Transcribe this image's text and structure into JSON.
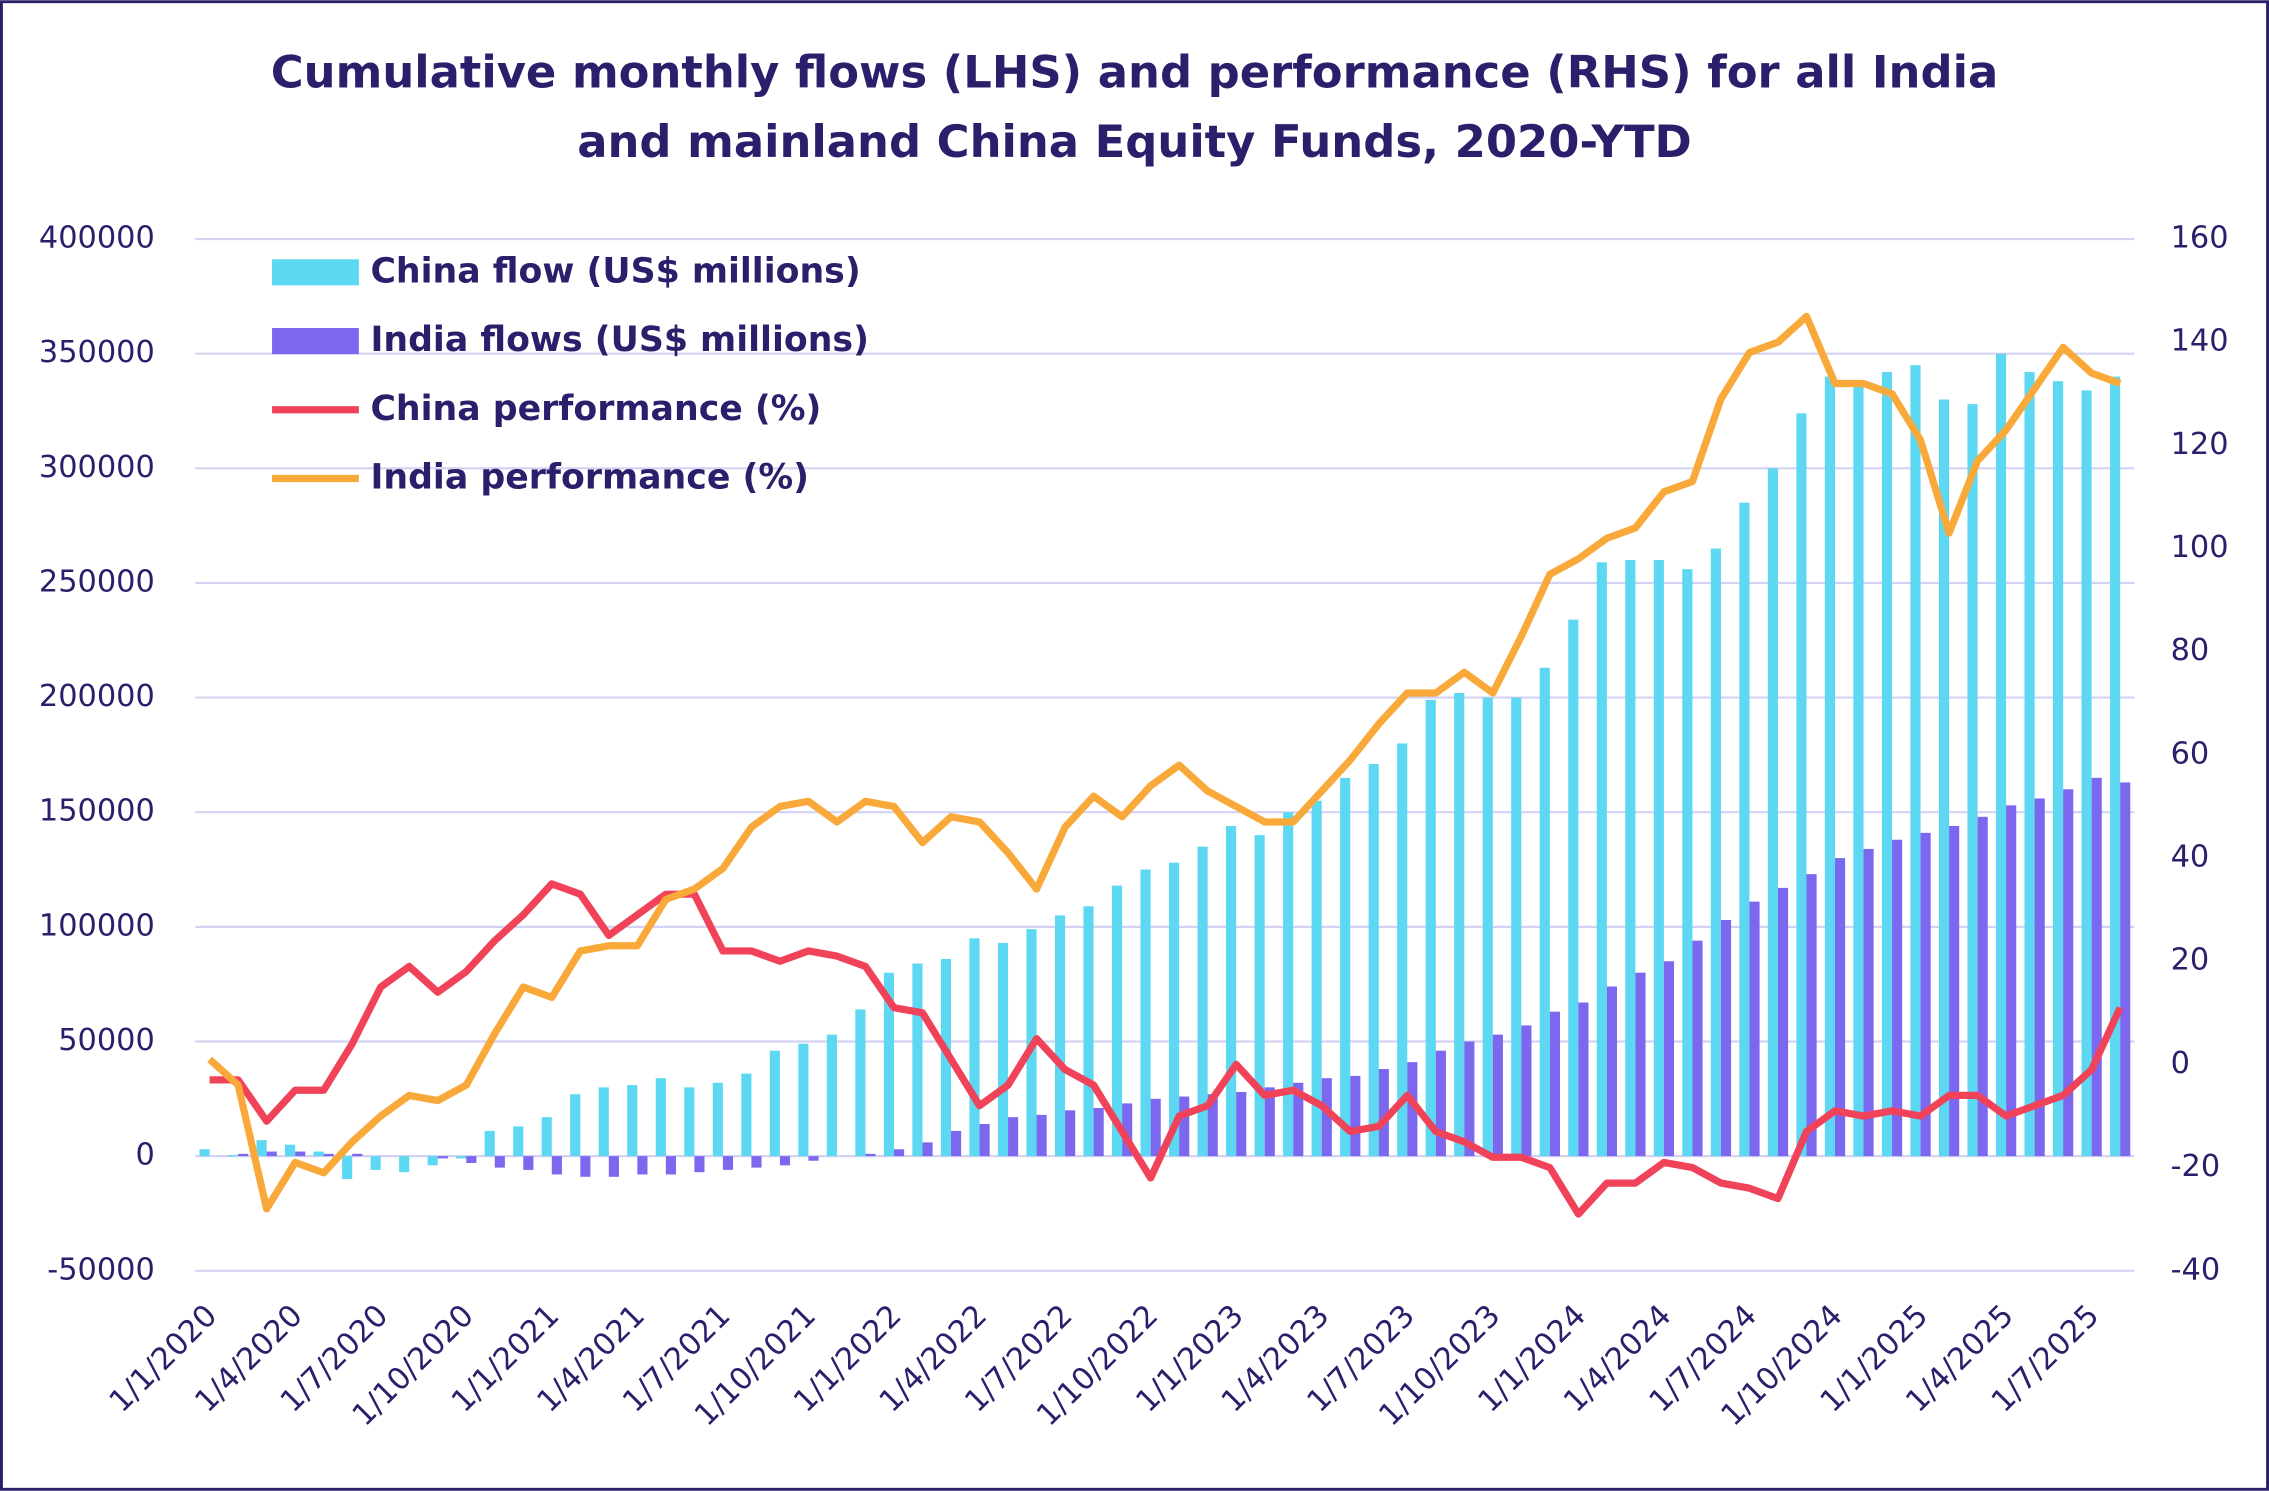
{
  "chart_data": {
    "type": "bar-line",
    "title": [
      "Cumulative monthly flows (LHS) and performance (RHS) for all India",
      "and mainland China Equity Funds, 2020-YTD"
    ],
    "categories": [
      "1/1/2020",
      null,
      null,
      "1/4/2020",
      null,
      null,
      "1/7/2020",
      null,
      null,
      "1/10/2020",
      null,
      null,
      "1/1/2021",
      null,
      null,
      "1/4/2021",
      null,
      null,
      "1/7/2021",
      null,
      null,
      "1/10/2021",
      null,
      null,
      "1/1/2022",
      null,
      null,
      "1/4/2022",
      null,
      null,
      "1/7/2022",
      null,
      null,
      "1/10/2022",
      null,
      null,
      "1/1/2023",
      null,
      null,
      "1/4/2023",
      null,
      null,
      "1/7/2023",
      null,
      null,
      "1/10/2023",
      null,
      null,
      "1/1/2024",
      null,
      null,
      "1/4/2024",
      null,
      null,
      "1/7/2024",
      null,
      null,
      "1/10/2024",
      null,
      null,
      "1/1/2025",
      null,
      null,
      "1/4/2025",
      null,
      null,
      "1/7/2025",
      null
    ],
    "series": [
      {
        "name": "China flow (US$ millions)",
        "kind": "bar",
        "color": "#5dd8f2",
        "values": [
          3000,
          500,
          7000,
          5000,
          2000,
          -10000,
          -6000,
          -7000,
          -4000,
          -1000,
          11000,
          13000,
          17000,
          27000,
          30000,
          31000,
          34000,
          30000,
          32000,
          36000,
          46000,
          49000,
          53000,
          64000,
          80000,
          84000,
          86000,
          95000,
          93000,
          99000,
          105000,
          109000,
          118000,
          125000,
          128000,
          135000,
          144000,
          140000,
          150000,
          155000,
          165000,
          171000,
          180000,
          199000,
          202000,
          200000,
          200000,
          213000,
          234000,
          259000,
          260000,
          260000,
          256000,
          265000,
          285000,
          300000,
          324000,
          340000,
          338000,
          342000,
          345000,
          330000,
          328000,
          350000,
          342000,
          338000,
          334000,
          340000
        ]
      },
      {
        "name": "India flows (US$ millions)",
        "kind": "bar",
        "color": "#7b68ee",
        "values": [
          0,
          1000,
          2000,
          2000,
          1000,
          1000,
          0,
          0,
          -1000,
          -3000,
          -5000,
          -6000,
          -8000,
          -9000,
          -9000,
          -8000,
          -8000,
          -7000,
          -6000,
          -5000,
          -4000,
          -2000,
          0,
          1000,
          3000,
          6000,
          11000,
          14000,
          17000,
          18000,
          20000,
          21000,
          23000,
          25000,
          26000,
          27000,
          28000,
          30000,
          32000,
          34000,
          35000,
          38000,
          41000,
          46000,
          50000,
          53000,
          57000,
          63000,
          67000,
          74000,
          80000,
          85000,
          94000,
          103000,
          111000,
          117000,
          123000,
          130000,
          134000,
          138000,
          141000,
          144000,
          148000,
          153000,
          156000,
          160000,
          165000,
          163000
        ]
      },
      {
        "name": "China performance (%)",
        "kind": "line",
        "axis": "y2",
        "color": "#f0435a",
        "values": [
          -3,
          -3,
          -11,
          -5,
          -5,
          4,
          15,
          19,
          14,
          18,
          24,
          29,
          35,
          33,
          25,
          29,
          33,
          33,
          22,
          22,
          20,
          22,
          21,
          19,
          11,
          10,
          1,
          -8,
          -4,
          5,
          -1,
          -4,
          -13,
          -22,
          -10,
          -8,
          0,
          -6,
          -5,
          -8,
          -13,
          -12,
          -6,
          -13,
          -15,
          -18,
          -18,
          -20,
          -29,
          -23,
          -23,
          -19,
          -20,
          -23,
          -24,
          -26,
          -13,
          -9,
          -10,
          -9,
          -10,
          -6,
          -6,
          -10,
          -8,
          -6,
          -1,
          11
        ]
      },
      {
        "name": "India performance (%)",
        "kind": "line",
        "axis": "y2",
        "color": "#f8a93a",
        "values": [
          1,
          -4,
          -28,
          -19,
          -21,
          -15,
          -10,
          -6,
          -7,
          -4,
          6,
          15,
          13,
          22,
          23,
          23,
          32,
          34,
          38,
          46,
          50,
          51,
          47,
          51,
          50,
          43,
          48,
          47,
          41,
          34,
          46,
          52,
          48,
          54,
          58,
          53,
          50,
          47,
          47,
          53,
          59,
          66,
          72,
          72,
          76,
          72,
          83,
          95,
          98,
          102,
          104,
          111,
          113,
          129,
          138,
          140,
          145,
          132,
          132,
          130,
          121,
          103,
          117,
          123,
          131,
          139,
          134,
          132
        ]
      }
    ],
    "ylim": [
      -50000,
      400000
    ],
    "yticks": [
      -50000,
      0,
      50000,
      100000,
      150000,
      200000,
      250000,
      300000,
      350000,
      400000
    ],
    "y2lim": [
      -40,
      160
    ],
    "y2ticks": [
      -40,
      -20,
      0,
      20,
      40,
      60,
      80,
      100,
      120,
      140,
      160
    ],
    "grid": true,
    "legend": "top-left"
  }
}
